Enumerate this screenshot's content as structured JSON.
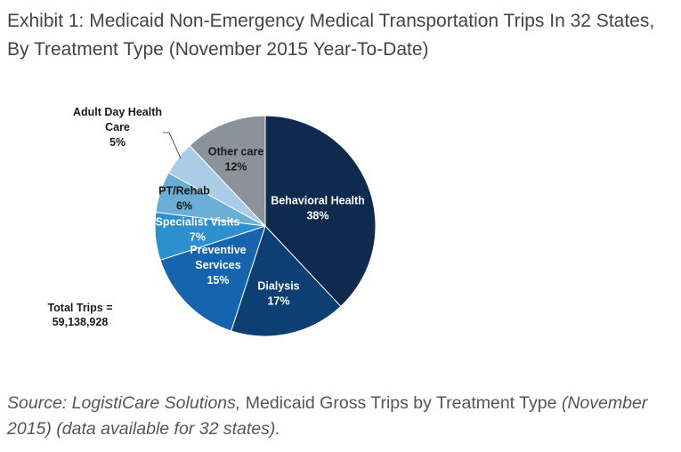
{
  "title": "Exhibit 1: Medicaid Non-Emergency Medical Transportation Trips In 32 States, By Treatment Type (November 2015 Year-To-Date)",
  "total_label": "Total Trips =",
  "total_value": "59,138,928",
  "source": {
    "prefix": "Source: LogistiCare Solutions,",
    "main": " Medicaid Gross Trips by Treatment Type ",
    "suffix": "(November 2015) (data available for 32 states)."
  },
  "chart_data": {
    "type": "pie",
    "title": "",
    "slices": [
      {
        "name": "Behavioral Health",
        "value": 38,
        "label_lines": [
          "Behavioral Health",
          "38%"
        ],
        "color": "#0e2a4e",
        "text_color": "#ffffff"
      },
      {
        "name": "Dialysis",
        "value": 17,
        "label_lines": [
          "Dialysis",
          "17%"
        ],
        "color": "#0d3f73",
        "text_color": "#ffffff"
      },
      {
        "name": "Preventive Services",
        "value": 15,
        "label_lines": [
          "Preventive",
          "Services",
          "15%"
        ],
        "color": "#1663b0",
        "text_color": "#ffffff"
      },
      {
        "name": "Specialist Visits",
        "value": 7,
        "label_lines": [
          "Specialist Visits",
          "7%"
        ],
        "color": "#2b8fd0",
        "text_color": "#ffffff"
      },
      {
        "name": "PT/Rehab",
        "value": 6,
        "label_lines": [
          "PT/Rehab",
          "6%"
        ],
        "color": "#6aaed6",
        "text_color": "#1a1a1a"
      },
      {
        "name": "Adult Day Health Care",
        "value": 5,
        "label_lines": [
          "Adult Day Health",
          "Care",
          "5%"
        ],
        "color": "#a9cde6",
        "text_color": "#1a1a1a"
      },
      {
        "name": "Other care",
        "value": 12,
        "label_lines": [
          "Other care",
          "12%"
        ],
        "color": "#8c929a",
        "text_color": "#1a1a1a"
      }
    ]
  }
}
